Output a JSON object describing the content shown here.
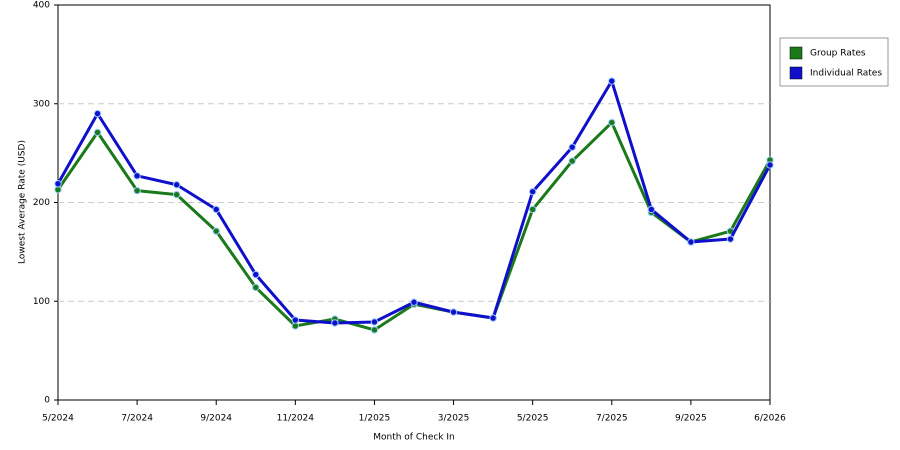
{
  "chart_data": {
    "type": "line",
    "y_label": "Lowest Average Rate (USD)",
    "x_label": "Month of Check In",
    "categories": [
      "5/2024",
      null,
      "7/2024",
      null,
      "9/2024",
      null,
      "11/2024",
      null,
      "1/2025",
      null,
      "3/2025",
      null,
      "5/2025",
      null,
      "7/2025",
      null,
      "9/2025",
      null,
      "6/2026"
    ],
    "series": [
      {
        "name": "Group Rates",
        "color": "#1a7a1a",
        "values": [
          213,
          271,
          212,
          208,
          171,
          114,
          75,
          82,
          71,
          97,
          89,
          83,
          193,
          242,
          281,
          190,
          160,
          171,
          243
        ]
      },
      {
        "name": "Individual Rates",
        "color": "#1010cc",
        "values": [
          219,
          290,
          227,
          218,
          193,
          127,
          81,
          78,
          79,
          99,
          89,
          83,
          211,
          256,
          323,
          193,
          160,
          163,
          238
        ]
      }
    ],
    "ylim": [
      0,
      400
    ],
    "yticks": [
      0,
      100,
      200,
      300,
      400
    ],
    "grid": true,
    "legend": "right"
  }
}
